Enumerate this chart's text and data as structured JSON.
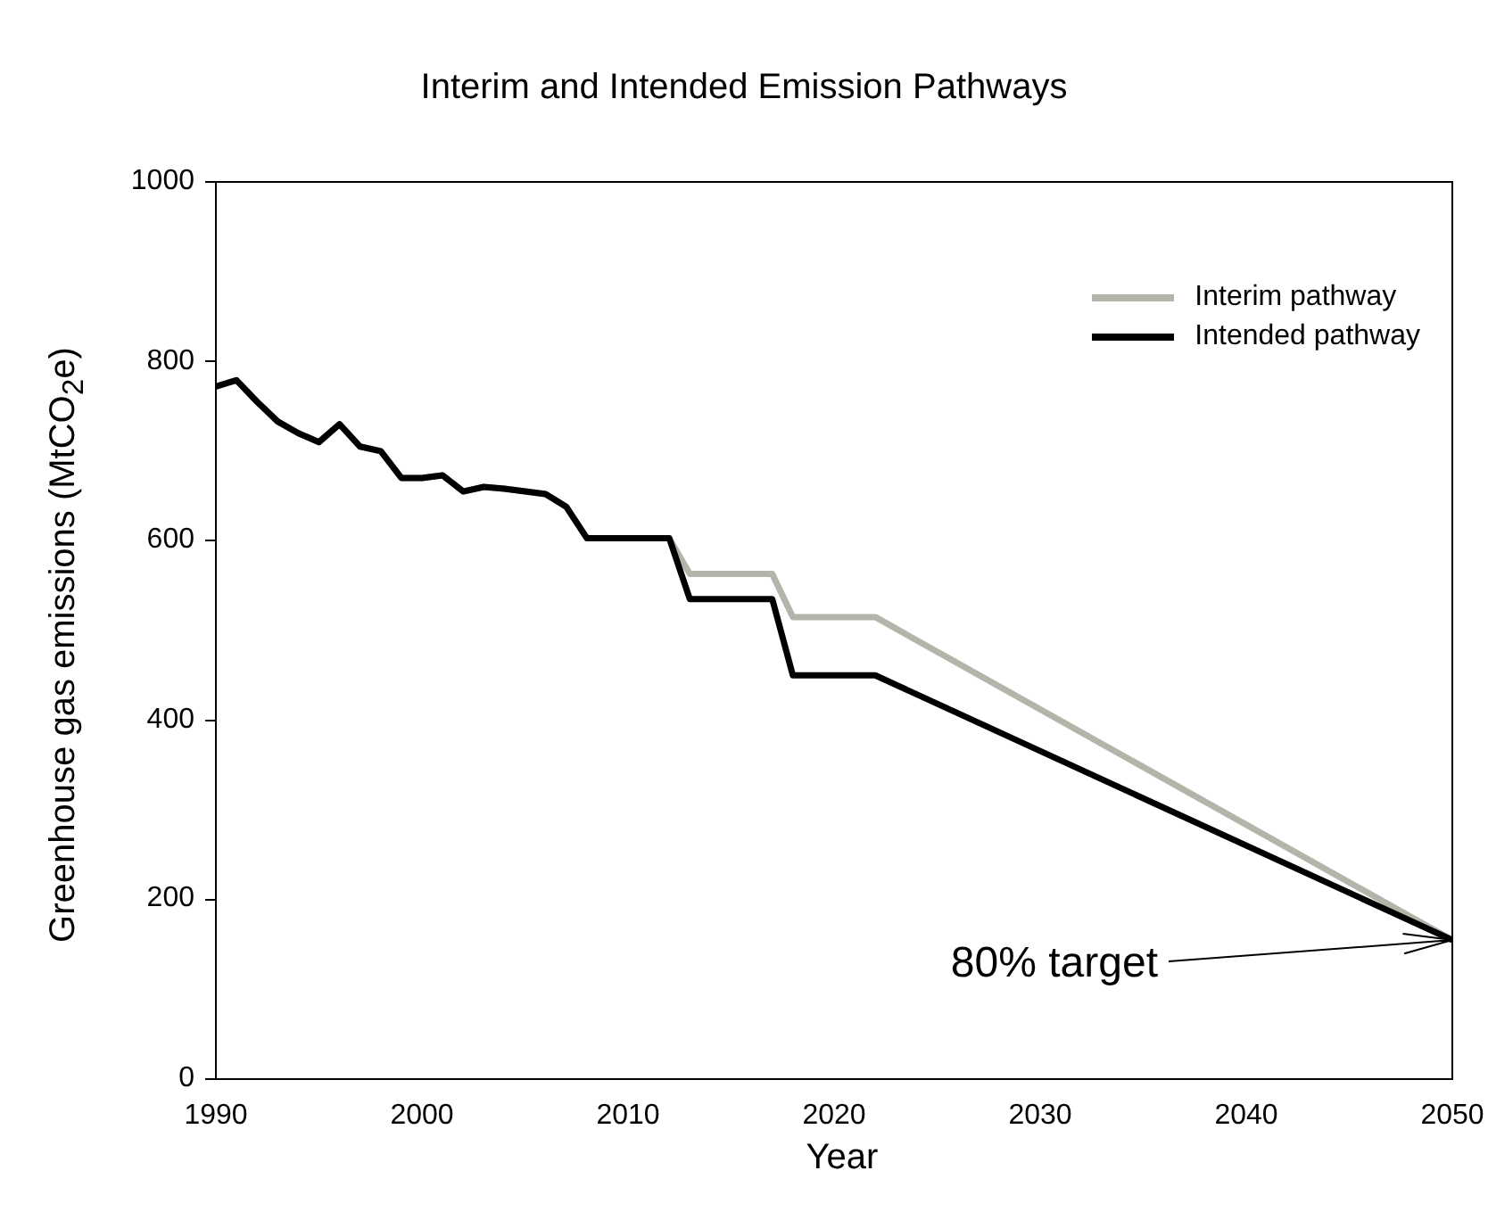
{
  "chart_data": {
    "type": "line",
    "title": "Interim and Intended Emission Pathways",
    "xlabel": "Year",
    "ylabel": "Greenhouse gas emissions (MtCO$_{2}$e)",
    "xlim": [
      1990,
      2050
    ],
    "xticks": [
      1990,
      2000,
      2010,
      2020,
      2030,
      2040,
      2050
    ],
    "ylim": [
      0,
      1000
    ],
    "yticks": [
      0,
      200,
      400,
      600,
      800,
      1000
    ],
    "grid": false,
    "legend": "top right",
    "marker": "none",
    "line_style": "solid",
    "annotations": [
      {
        "text": "80% target",
        "x": 2050,
        "y": 155
      }
    ],
    "series": [
      {
        "name": "Interim pathway",
        "color": "#b4b4aa",
        "x": [
          1990,
          1991,
          1992,
          1993,
          1994,
          1995,
          1996,
          1997,
          1998,
          1999,
          2000,
          2001,
          2002,
          2003,
          2004,
          2005,
          2006,
          2007,
          2008,
          2012,
          2013,
          2017,
          2018,
          2022,
          2050
        ],
        "values": [
          772,
          779,
          755,
          733,
          720,
          710,
          730,
          705,
          700,
          670,
          670,
          673,
          655,
          660,
          658,
          655,
          652,
          638,
          603,
          603,
          563,
          563,
          515,
          515,
          155
        ]
      },
      {
        "name": "Intended pathway",
        "color": "#000000",
        "x": [
          1990,
          1991,
          1992,
          1993,
          1994,
          1995,
          1996,
          1997,
          1998,
          1999,
          2000,
          2001,
          2002,
          2003,
          2004,
          2005,
          2006,
          2007,
          2008,
          2012,
          2013,
          2017,
          2018,
          2022,
          2050
        ],
        "values": [
          772,
          779,
          755,
          733,
          720,
          710,
          730,
          705,
          700,
          670,
          670,
          673,
          655,
          660,
          658,
          655,
          652,
          638,
          603,
          603,
          535,
          535,
          450,
          450,
          155
        ]
      }
    ]
  }
}
